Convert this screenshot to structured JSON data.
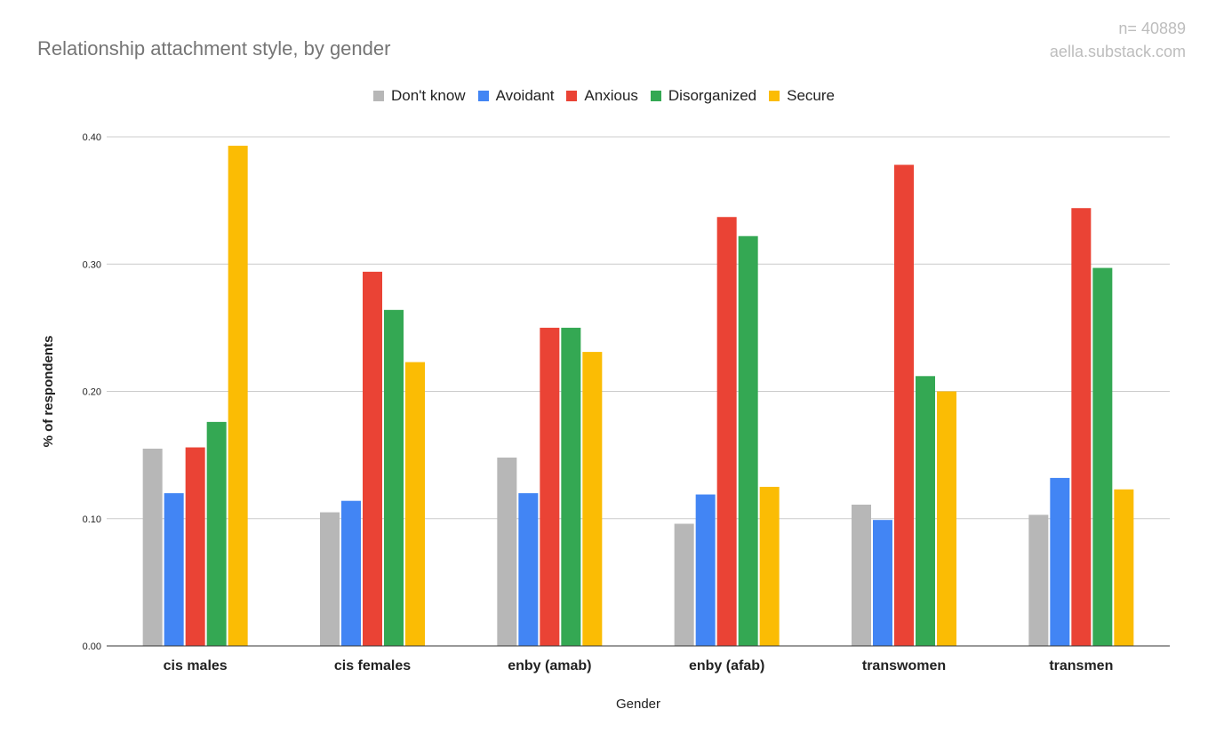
{
  "header": {
    "sample_size": "n= 40889",
    "source": "aella.substack.com"
  },
  "chart_data": {
    "type": "bar",
    "title": "Relationship attachment style, by gender",
    "xlabel": "Gender",
    "ylabel": "% of respondents",
    "ylim": [
      0,
      0.4
    ],
    "yticks": [
      "0.00",
      "0.10",
      "0.20",
      "0.30",
      "0.40"
    ],
    "grid": true,
    "legend_position": "top-center",
    "categories": [
      "cis males",
      "cis females",
      "enby (amab)",
      "enby (afab)",
      "transwomen",
      "transmen"
    ],
    "series": [
      {
        "name": "Don't know",
        "color": "#b7b7b7",
        "values": [
          0.155,
          0.105,
          0.148,
          0.096,
          0.111,
          0.103
        ]
      },
      {
        "name": "Avoidant",
        "color": "#4285f4",
        "values": [
          0.12,
          0.114,
          0.12,
          0.119,
          0.099,
          0.132
        ]
      },
      {
        "name": "Anxious",
        "color": "#ea4335",
        "values": [
          0.156,
          0.294,
          0.25,
          0.337,
          0.378,
          0.344
        ]
      },
      {
        "name": "Disorganized",
        "color": "#34a853",
        "values": [
          0.176,
          0.264,
          0.25,
          0.322,
          0.212,
          0.297
        ]
      },
      {
        "name": "Secure",
        "color": "#fbbc04",
        "values": [
          0.393,
          0.223,
          0.231,
          0.125,
          0.2,
          0.123
        ]
      }
    ]
  }
}
